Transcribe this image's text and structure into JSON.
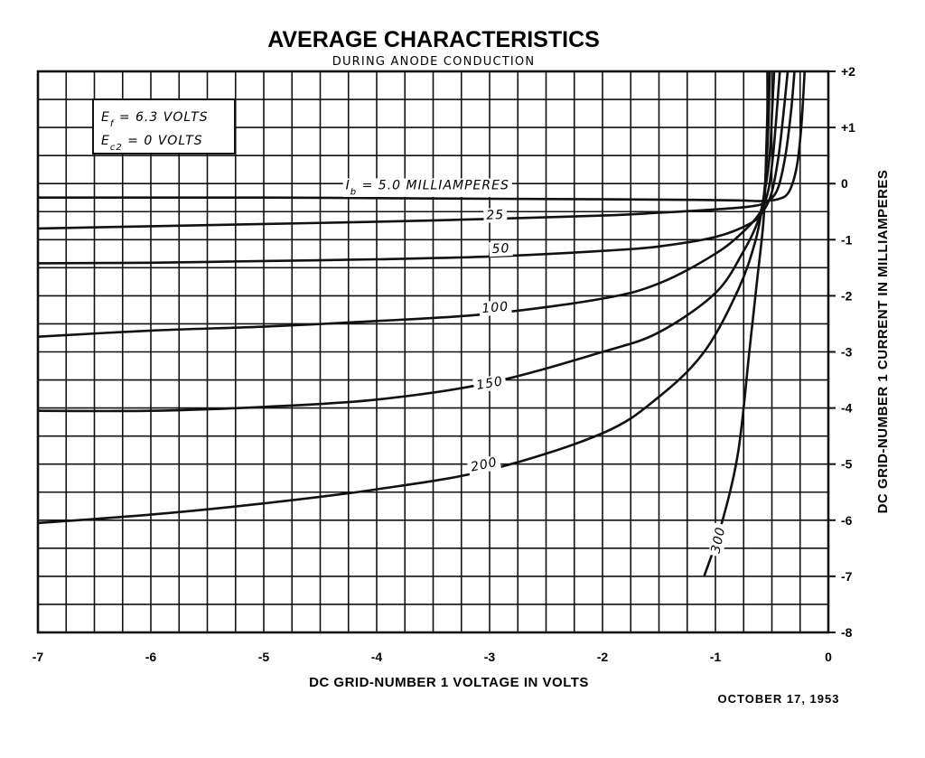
{
  "chart_data": {
    "type": "line",
    "title": "AVERAGE CHARACTERISTICS",
    "subtitle": "DURING ANODE CONDUCTION",
    "xlabel": "DC GRID-NUMBER 1 VOLTAGE IN VOLTS",
    "ylabel": "DC GRID-NUMBER 1 CURRENT IN MILLIAMPERES",
    "xlim": [
      -7,
      0
    ],
    "ylim": [
      -8,
      2
    ],
    "x_ticks": [
      -7,
      -6,
      -5,
      -4,
      -3,
      -2,
      -1,
      0
    ],
    "x_tick_labels": [
      "-7",
      "-6",
      "-5",
      "-4",
      "-3",
      "-2",
      "-1",
      "0"
    ],
    "y_ticks": [
      2,
      1,
      0,
      -1,
      -2,
      -3,
      -4,
      -5,
      -6,
      -7,
      -8
    ],
    "y_tick_labels": [
      "+2",
      "+1",
      "0",
      "-1",
      "-2",
      "-3",
      "-4",
      "-5",
      "-6",
      "-7",
      "-8"
    ],
    "grid": true,
    "conditions": [
      {
        "symbol": "E",
        "sub": "f",
        "text": " = 6.3 VOLTS"
      },
      {
        "symbol": "E",
        "sub": "c2",
        "text": " = 0 VOLTS"
      }
    ],
    "date": "OCTOBER 17, 1953",
    "series": [
      {
        "name": "I",
        "label_sub": "b",
        "label_rest": " = 5.0 MILLIAMPERES",
        "label_at": [
          -3.55,
          -0.02
        ],
        "label_rot": 0,
        "points": [
          [
            -7,
            -0.25
          ],
          [
            -6,
            -0.25
          ],
          [
            -5,
            -0.25
          ],
          [
            -4,
            -0.26
          ],
          [
            -3,
            -0.27
          ],
          [
            -2,
            -0.28
          ],
          [
            -1.2,
            -0.29
          ],
          [
            -0.8,
            -0.3
          ],
          [
            -0.6,
            -0.31
          ],
          [
            -0.45,
            -0.28
          ],
          [
            -0.35,
            -0.15
          ],
          [
            -0.28,
            0.3
          ],
          [
            -0.24,
            1.0
          ],
          [
            -0.21,
            2.0
          ]
        ]
      },
      {
        "name": "25",
        "label_at": [
          -2.95,
          -0.55
        ],
        "label_rot": -2,
        "points": [
          [
            -7,
            -0.8
          ],
          [
            -6,
            -0.76
          ],
          [
            -5,
            -0.72
          ],
          [
            -4,
            -0.68
          ],
          [
            -3,
            -0.63
          ],
          [
            -2,
            -0.57
          ],
          [
            -1.5,
            -0.52
          ],
          [
            -1,
            -0.46
          ],
          [
            -0.7,
            -0.41
          ],
          [
            -0.55,
            -0.33
          ],
          [
            -0.45,
            -0.1
          ],
          [
            -0.38,
            0.5
          ],
          [
            -0.33,
            1.3
          ],
          [
            -0.3,
            2.0
          ]
        ]
      },
      {
        "name": "50",
        "label_at": [
          -2.9,
          -1.15
        ],
        "label_rot": -3,
        "points": [
          [
            -7,
            -1.42
          ],
          [
            -6,
            -1.41
          ],
          [
            -5,
            -1.38
          ],
          [
            -4,
            -1.35
          ],
          [
            -3,
            -1.3
          ],
          [
            -2,
            -1.2
          ],
          [
            -1.5,
            -1.12
          ],
          [
            -1,
            -0.95
          ],
          [
            -0.7,
            -0.72
          ],
          [
            -0.58,
            -0.5
          ],
          [
            -0.5,
            -0.15
          ],
          [
            -0.44,
            0.5
          ],
          [
            -0.4,
            1.2
          ],
          [
            -0.36,
            2.0
          ]
        ]
      },
      {
        "name": "100",
        "label_at": [
          -2.95,
          -2.2
        ],
        "label_rot": -5,
        "points": [
          [
            -7,
            -2.73
          ],
          [
            -6,
            -2.62
          ],
          [
            -5,
            -2.55
          ],
          [
            -4,
            -2.45
          ],
          [
            -3,
            -2.32
          ],
          [
            -2,
            -2.05
          ],
          [
            -1.5,
            -1.78
          ],
          [
            -1,
            -1.25
          ],
          [
            -0.75,
            -0.85
          ],
          [
            -0.6,
            -0.5
          ],
          [
            -0.53,
            -0.1
          ],
          [
            -0.49,
            0.5
          ],
          [
            -0.46,
            1.2
          ],
          [
            -0.43,
            2.0
          ]
        ]
      },
      {
        "name": "150",
        "label_at": [
          -3.0,
          -3.55
        ],
        "label_rot": -10,
        "points": [
          [
            -7,
            -4.05
          ],
          [
            -6,
            -4.05
          ],
          [
            -5,
            -3.98
          ],
          [
            -4,
            -3.85
          ],
          [
            -3,
            -3.55
          ],
          [
            -2,
            -3.0
          ],
          [
            -1.5,
            -2.65
          ],
          [
            -1,
            -1.95
          ],
          [
            -0.75,
            -1.2
          ],
          [
            -0.62,
            -0.65
          ],
          [
            -0.56,
            -0.1
          ],
          [
            -0.52,
            0.5
          ],
          [
            -0.5,
            1.2
          ],
          [
            -0.48,
            2.0
          ]
        ]
      },
      {
        "name": "200",
        "label_at": [
          -3.05,
          -5.0
        ],
        "label_rot": -12,
        "points": [
          [
            -7,
            -6.05
          ],
          [
            -6,
            -5.9
          ],
          [
            -5,
            -5.7
          ],
          [
            -4,
            -5.45
          ],
          [
            -3,
            -5.1
          ],
          [
            -2,
            -4.45
          ],
          [
            -1.5,
            -3.8
          ],
          [
            -1.1,
            -3.0
          ],
          [
            -0.8,
            -1.9
          ],
          [
            -0.65,
            -1.05
          ],
          [
            -0.58,
            -0.35
          ],
          [
            -0.55,
            0.3
          ],
          [
            -0.53,
            1.1
          ],
          [
            -0.52,
            2.0
          ]
        ]
      },
      {
        "name": "300",
        "label_at": [
          -0.98,
          -6.35
        ],
        "label_rot": -78,
        "points": [
          [
            -1.1,
            -7.0
          ],
          [
            -0.95,
            -6.1
          ],
          [
            -0.8,
            -4.8
          ],
          [
            -0.7,
            -3.0
          ],
          [
            -0.63,
            -1.7
          ],
          [
            -0.58,
            -0.8
          ],
          [
            -0.56,
            -0.1
          ],
          [
            -0.55,
            0.6
          ],
          [
            -0.54,
            1.3
          ],
          [
            -0.54,
            2.0
          ]
        ]
      }
    ]
  }
}
